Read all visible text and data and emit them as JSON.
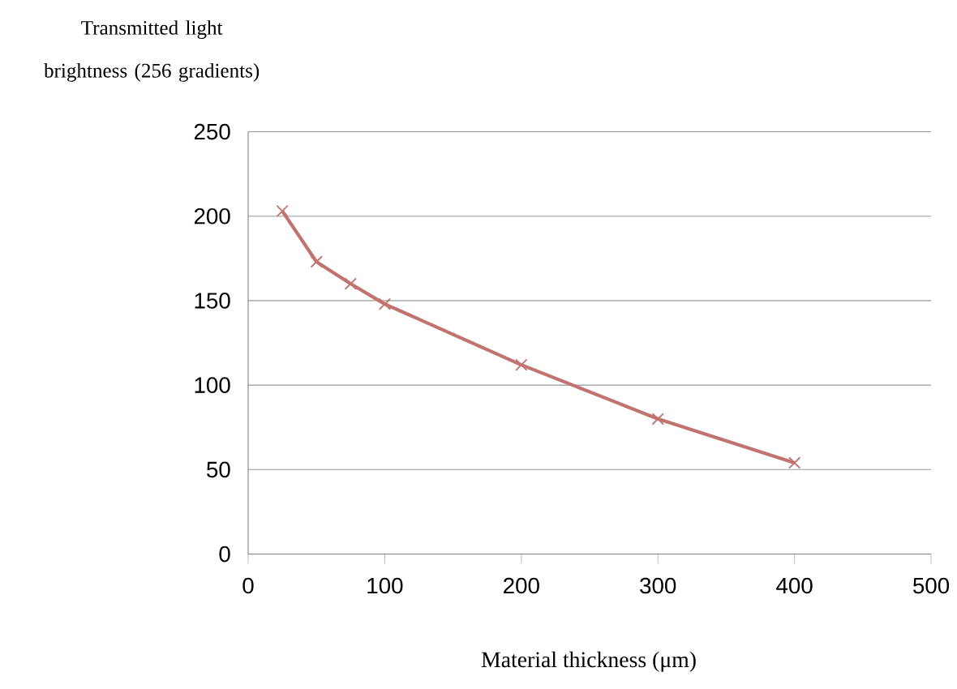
{
  "chart_data": {
    "type": "line",
    "xlabel": "Material thickness (μm)",
    "ylabel": "Transmitted light brightness (256 gradients)",
    "x": [
      25,
      50,
      75,
      100,
      200,
      300,
      400
    ],
    "series": [
      {
        "color": "#c0736f",
        "values": [
          203,
          173,
          160,
          148,
          112,
          80,
          54
        ]
      }
    ],
    "xlim": [
      0,
      500
    ],
    "xticks": [
      0,
      100,
      200,
      300,
      400,
      500
    ],
    "ylim": [
      0,
      250
    ],
    "yticks": [
      0,
      50,
      100,
      150,
      200,
      250
    ],
    "grid": "y",
    "marker": "cross",
    "line_style": "solid"
  }
}
